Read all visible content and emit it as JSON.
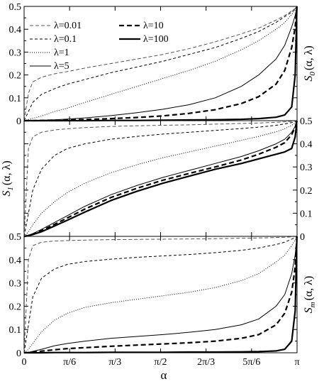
{
  "chart_data": {
    "type": "line",
    "xlabel": "α",
    "x_ticks": [
      "0",
      "π/6",
      "π/3",
      "π/2",
      "2π/3",
      "5π/6",
      "π"
    ],
    "x_tick_values": [
      0,
      0.5236,
      1.0472,
      1.5708,
      2.0944,
      2.618,
      3.1416
    ],
    "xlim": [
      0,
      3.1416
    ],
    "legend": [
      {
        "label": "λ=0.01",
        "style": "dashed-thin-gray"
      },
      {
        "label": "λ=0.1",
        "style": "dashed-thin"
      },
      {
        "label": "λ=1",
        "style": "dotted"
      },
      {
        "label": "λ=5",
        "style": "solid-thin"
      },
      {
        "label": "λ=10",
        "style": "dashed-thick"
      },
      {
        "label": "λ=100",
        "style": "solid-thick"
      }
    ],
    "legend_position": "top-left",
    "panels": [
      {
        "ylabel": {
          "main": "S",
          "sub": "0",
          "rest": "(α, λ)"
        },
        "ylabel_side": "right",
        "ylim": [
          0,
          0.5
        ],
        "y_ticks": [
          "0",
          "0.1",
          "0.2",
          "0.3",
          "0.4",
          "0.5"
        ],
        "y_tick_side": "left",
        "x": [
          0,
          0.05,
          0.1,
          0.2,
          0.35,
          0.5,
          0.7,
          1.0,
          1.3,
          1.6,
          1.9,
          2.2,
          2.5,
          2.7,
          2.9,
          3.0,
          3.08,
          3.12,
          3.14
        ],
        "series": [
          {
            "name": "λ=0.01",
            "values": [
              0.0,
              0.12,
              0.17,
              0.19,
              0.205,
              0.215,
              0.23,
              0.25,
              0.27,
              0.29,
              0.315,
              0.345,
              0.38,
              0.405,
              0.44,
              0.46,
              0.48,
              0.49,
              0.5
            ]
          },
          {
            "name": "λ=0.1",
            "values": [
              0.0,
              0.04,
              0.08,
              0.115,
              0.14,
              0.16,
              0.18,
              0.21,
              0.235,
              0.26,
              0.29,
              0.32,
              0.36,
              0.39,
              0.43,
              0.455,
              0.475,
              0.49,
              0.5
            ]
          },
          {
            "name": "λ=1",
            "values": [
              0.0,
              0.005,
              0.01,
              0.02,
              0.04,
              0.055,
              0.08,
              0.115,
              0.15,
              0.185,
              0.22,
              0.26,
              0.31,
              0.35,
              0.4,
              0.43,
              0.465,
              0.485,
              0.5
            ]
          },
          {
            "name": "λ=5",
            "values": [
              0.0,
              0.0,
              0.001,
              0.002,
              0.004,
              0.007,
              0.012,
              0.022,
              0.035,
              0.05,
              0.07,
              0.1,
              0.15,
              0.2,
              0.27,
              0.33,
              0.41,
              0.46,
              0.5
            ]
          },
          {
            "name": "λ=10",
            "values": [
              0.0,
              0.0,
              0.0,
              0.001,
              0.002,
              0.003,
              0.005,
              0.009,
              0.014,
              0.021,
              0.032,
              0.048,
              0.075,
              0.105,
              0.16,
              0.22,
              0.32,
              0.41,
              0.5
            ]
          },
          {
            "name": "λ=100",
            "values": [
              0.0,
              0.0,
              0.0,
              0.0,
              0.0,
              0.0,
              0.0,
              0.001,
              0.001,
              0.002,
              0.003,
              0.004,
              0.006,
              0.009,
              0.015,
              0.025,
              0.06,
              0.2,
              0.5
            ]
          }
        ]
      },
      {
        "ylabel": {
          "main": "S",
          "sub": "1",
          "rest": "(α, λ)"
        },
        "ylabel_side": "left",
        "ylim": [
          0,
          0.5
        ],
        "y_ticks": [
          "0",
          "0.1",
          "0.2",
          "0.3",
          "0.4",
          "0.5"
        ],
        "y_tick_side": "right",
        "x": [
          0,
          0.05,
          0.1,
          0.2,
          0.35,
          0.5,
          0.7,
          1.0,
          1.3,
          1.6,
          1.9,
          2.2,
          2.5,
          2.7,
          2.9,
          3.0,
          3.08,
          3.12,
          3.14
        ],
        "series": [
          {
            "name": "λ=0.01",
            "values": [
              0.0,
              0.38,
              0.43,
              0.45,
              0.46,
              0.465,
              0.47,
              0.475,
              0.478,
              0.48,
              0.482,
              0.485,
              0.488,
              0.49,
              0.493,
              0.495,
              0.497,
              0.499,
              0.5
            ]
          },
          {
            "name": "λ=0.1",
            "values": [
              0.0,
              0.1,
              0.2,
              0.29,
              0.35,
              0.38,
              0.4,
              0.42,
              0.432,
              0.442,
              0.45,
              0.458,
              0.466,
              0.472,
              0.48,
              0.486,
              0.492,
              0.496,
              0.5
            ]
          },
          {
            "name": "λ=1",
            "values": [
              0.0,
              0.02,
              0.05,
              0.1,
              0.15,
              0.19,
              0.23,
              0.275,
              0.31,
              0.34,
              0.365,
              0.39,
              0.415,
              0.432,
              0.452,
              0.465,
              0.48,
              0.49,
              0.5
            ]
          },
          {
            "name": "λ=5",
            "values": [
              0.0,
              0.005,
              0.012,
              0.03,
              0.06,
              0.09,
              0.13,
              0.18,
              0.22,
              0.255,
              0.285,
              0.315,
              0.345,
              0.37,
              0.4,
              0.42,
              0.45,
              0.475,
              0.5
            ]
          },
          {
            "name": "λ=10",
            "values": [
              0.0,
              0.004,
              0.01,
              0.025,
              0.052,
              0.08,
              0.118,
              0.168,
              0.208,
              0.243,
              0.272,
              0.3,
              0.33,
              0.355,
              0.385,
              0.405,
              0.44,
              0.47,
              0.5
            ]
          },
          {
            "name": "λ=100",
            "values": [
              0.0,
              0.003,
              0.008,
              0.02,
              0.045,
              0.07,
              0.105,
              0.155,
              0.195,
              0.23,
              0.26,
              0.29,
              0.315,
              0.335,
              0.355,
              0.365,
              0.38,
              0.43,
              0.5
            ]
          }
        ]
      },
      {
        "ylabel": {
          "main": "S",
          "sub": "m",
          "rest": "(α, λ)"
        },
        "ylabel_side": "right",
        "ylim": [
          0,
          0.5
        ],
        "y_ticks": [
          "0",
          "0.1",
          "0.2",
          "0.3",
          "0.4",
          "0.5"
        ],
        "y_tick_side": "left",
        "x": [
          0,
          0.05,
          0.1,
          0.2,
          0.35,
          0.5,
          0.7,
          1.0,
          1.3,
          1.6,
          1.9,
          2.2,
          2.5,
          2.7,
          2.9,
          3.0,
          3.08,
          3.12,
          3.14
        ],
        "series": [
          {
            "name": "λ=0.01",
            "values": [
              0.0,
              0.4,
              0.46,
              0.475,
              0.48,
              0.482,
              0.484,
              0.486,
              0.487,
              0.488,
              0.489,
              0.49,
              0.492,
              0.493,
              0.495,
              0.496,
              0.498,
              0.499,
              0.5
            ]
          },
          {
            "name": "λ=0.1",
            "values": [
              0.0,
              0.12,
              0.24,
              0.32,
              0.36,
              0.38,
              0.392,
              0.402,
              0.41,
              0.416,
              0.422,
              0.43,
              0.44,
              0.45,
              0.465,
              0.475,
              0.488,
              0.495,
              0.5
            ]
          },
          {
            "name": "λ=1",
            "values": [
              0.0,
              0.015,
              0.04,
              0.09,
              0.14,
              0.17,
              0.195,
              0.215,
              0.23,
              0.245,
              0.26,
              0.28,
              0.31,
              0.34,
              0.39,
              0.42,
              0.46,
              0.485,
              0.5
            ]
          },
          {
            "name": "λ=5",
            "values": [
              0.0,
              0.002,
              0.006,
              0.015,
              0.03,
              0.04,
              0.05,
              0.062,
              0.07,
              0.078,
              0.088,
              0.1,
              0.12,
              0.145,
              0.2,
              0.25,
              0.34,
              0.42,
              0.5
            ]
          },
          {
            "name": "λ=10",
            "values": [
              0.0,
              0.001,
              0.003,
              0.007,
              0.013,
              0.018,
              0.022,
              0.028,
              0.033,
              0.038,
              0.043,
              0.05,
              0.062,
              0.078,
              0.12,
              0.17,
              0.26,
              0.37,
              0.5
            ]
          },
          {
            "name": "λ=100",
            "values": [
              0.0,
              0.0,
              0.0,
              0.0,
              0.001,
              0.001,
              0.001,
              0.002,
              0.002,
              0.002,
              0.003,
              0.003,
              0.004,
              0.005,
              0.008,
              0.015,
              0.05,
              0.18,
              0.5
            ]
          }
        ]
      }
    ],
    "grid": false
  }
}
